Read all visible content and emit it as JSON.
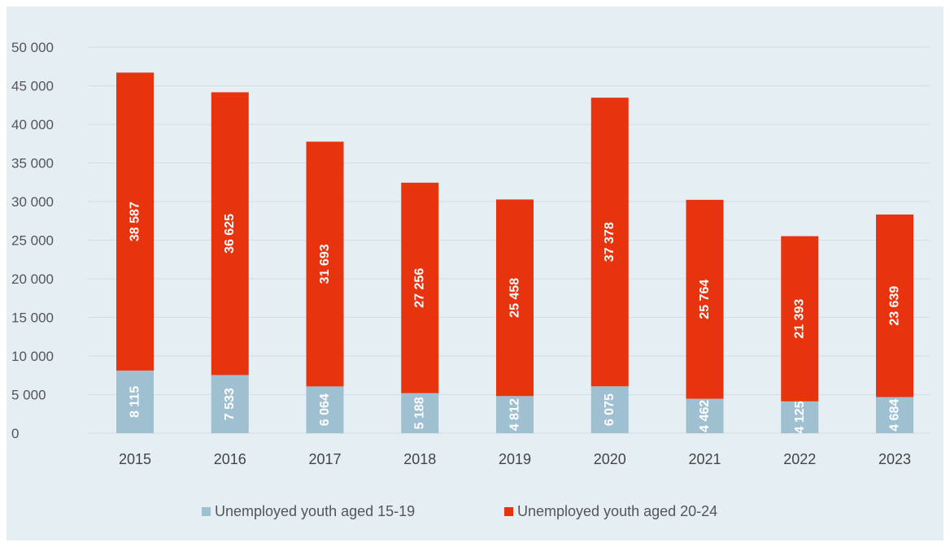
{
  "chart_data": {
    "type": "bar",
    "stacked": true,
    "categories": [
      "2015",
      "2016",
      "2017",
      "2018",
      "2019",
      "2020",
      "2021",
      "2022",
      "2023"
    ],
    "series": [
      {
        "name": "Unemployed youth aged 15-19",
        "color": "#9fc0d1",
        "values": [
          8115,
          7533,
          6064,
          5188,
          4812,
          6075,
          4462,
          4125,
          4684
        ],
        "labels": [
          "8 115",
          "7 533",
          "6 064",
          "5 188",
          "4 812",
          "6 075",
          "4 462",
          "4 125",
          "4 684"
        ]
      },
      {
        "name": "Unemployed youth aged 20-24",
        "color": "#e8330f",
        "values": [
          38587,
          36625,
          31693,
          27256,
          25458,
          37378,
          25764,
          21393,
          23639
        ],
        "labels": [
          "38 587",
          "36 625",
          "31 693",
          "27 256",
          "25 458",
          "37 378",
          "25 764",
          "21 393",
          "23 639"
        ]
      }
    ],
    "ylim": [
      0,
      50000
    ],
    "yticks": [
      0,
      5000,
      10000,
      15000,
      20000,
      25000,
      30000,
      35000,
      40000,
      45000,
      50000
    ],
    "ytick_labels": [
      "0",
      "5 000",
      "10 000",
      "15 000",
      "20 000",
      "25 000",
      "30 000",
      "35 000",
      "40 000",
      "45 000",
      "50 000"
    ],
    "grid": true,
    "legend_position": "bottom",
    "background_color": "#e5eef3",
    "gridline_color": "#d3dde2"
  }
}
